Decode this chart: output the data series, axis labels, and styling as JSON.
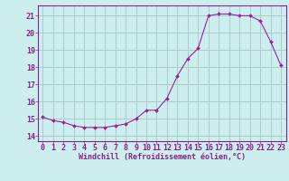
{
  "x": [
    0,
    1,
    2,
    3,
    4,
    5,
    6,
    7,
    8,
    9,
    10,
    11,
    12,
    13,
    14,
    15,
    16,
    17,
    18,
    19,
    20,
    21,
    22,
    23
  ],
  "y": [
    15.1,
    14.9,
    14.8,
    14.6,
    14.5,
    14.5,
    14.5,
    14.6,
    14.7,
    15.0,
    15.5,
    15.5,
    16.2,
    17.5,
    18.5,
    19.1,
    21.0,
    21.1,
    21.1,
    21.0,
    21.0,
    20.7,
    19.5,
    18.1
  ],
  "line_color": "#992299",
  "marker": "D",
  "marker_size": 2,
  "bg_color": "#cceeee",
  "grid_color": "#aacccc",
  "xlabel": "Windchill (Refroidissement éolien,°C)",
  "xlabel_color": "#882288",
  "tick_color": "#882288",
  "ylabel_ticks": [
    14,
    15,
    16,
    17,
    18,
    19,
    20,
    21
  ],
  "xlim": [
    -0.5,
    23.5
  ],
  "ylim": [
    13.7,
    21.6
  ],
  "font_size": 6,
  "tick_font_size": 6
}
